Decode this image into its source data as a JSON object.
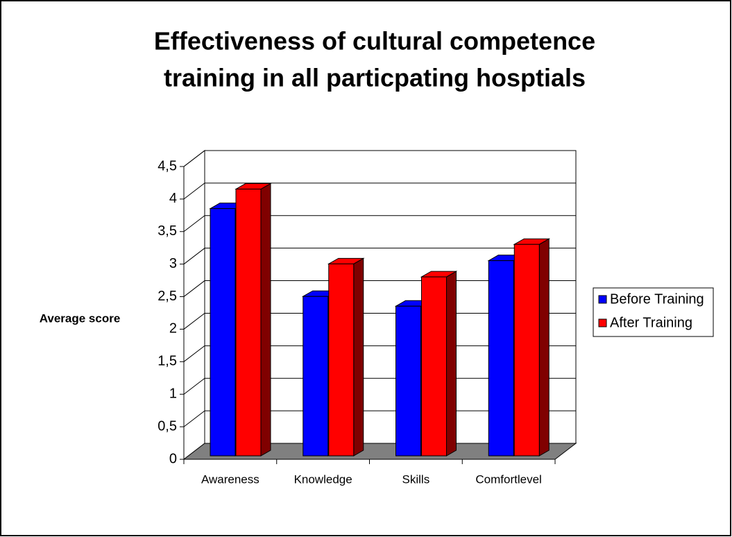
{
  "chart_data": {
    "type": "bar3d",
    "title": [
      "Effectiveness of cultural competence",
      "training in all particpating hosptials"
    ],
    "y_label": "Average score",
    "categories": [
      "Awareness",
      "Knowledge",
      "Skills",
      "Comfortlevel"
    ],
    "series": [
      {
        "name": "Before Training",
        "color": "#0000ff",
        "side_color": "#000080",
        "values": [
          3.8,
          2.45,
          2.3,
          3.0
        ]
      },
      {
        "name": "After Training",
        "color": "#ff0000",
        "side_color": "#800000",
        "values": [
          4.1,
          2.95,
          2.75,
          3.25
        ]
      }
    ],
    "ylim": [
      0,
      4.5
    ],
    "yticks": [
      0,
      {
        "value": 0.5,
        "label": "0,5"
      },
      1,
      {
        "value": 1.5,
        "label": "1,5"
      },
      2,
      {
        "value": 2.5,
        "label": "2,5"
      },
      3,
      {
        "value": 3.5,
        "label": "3,5"
      },
      4,
      {
        "value": 4.5,
        "label": "4,5"
      }
    ],
    "grid": true,
    "legend": "right"
  }
}
